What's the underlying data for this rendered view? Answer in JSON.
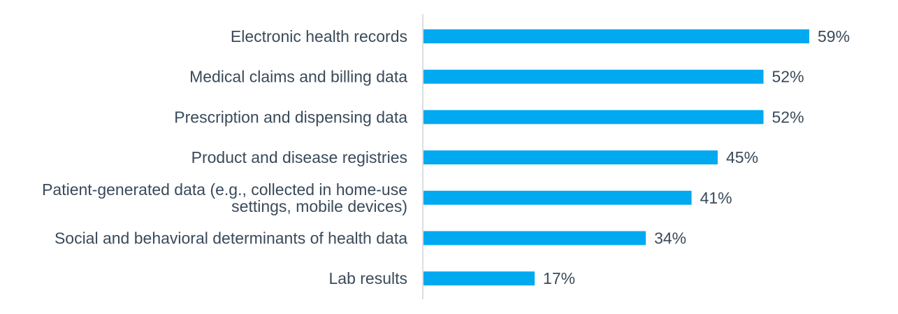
{
  "chart_data": {
    "type": "bar",
    "orientation": "horizontal",
    "categories": [
      [
        "Electronic health records"
      ],
      [
        "Medical claims and billing data"
      ],
      [
        "Prescription and dispensing data"
      ],
      [
        "Product and disease registries"
      ],
      [
        "Patient-generated data (e.g., collected in home-use",
        "settings, mobile devices)"
      ],
      [
        "Social and behavioral determinants of health data"
      ],
      [
        "Lab results"
      ]
    ],
    "values": [
      59,
      52,
      52,
      45,
      41,
      34,
      17
    ],
    "value_labels": [
      "59%",
      "52%",
      "52%",
      "45%",
      "41%",
      "34%",
      "17%"
    ],
    "unit": "%",
    "title": "",
    "xlabel": "",
    "ylabel": "",
    "xlim": [
      0,
      59
    ],
    "grid": false,
    "legend": "none",
    "colors": {
      "bar": "#00a9f0",
      "axis": "#d0d4d8",
      "text": "#3a4a5a"
    }
  }
}
